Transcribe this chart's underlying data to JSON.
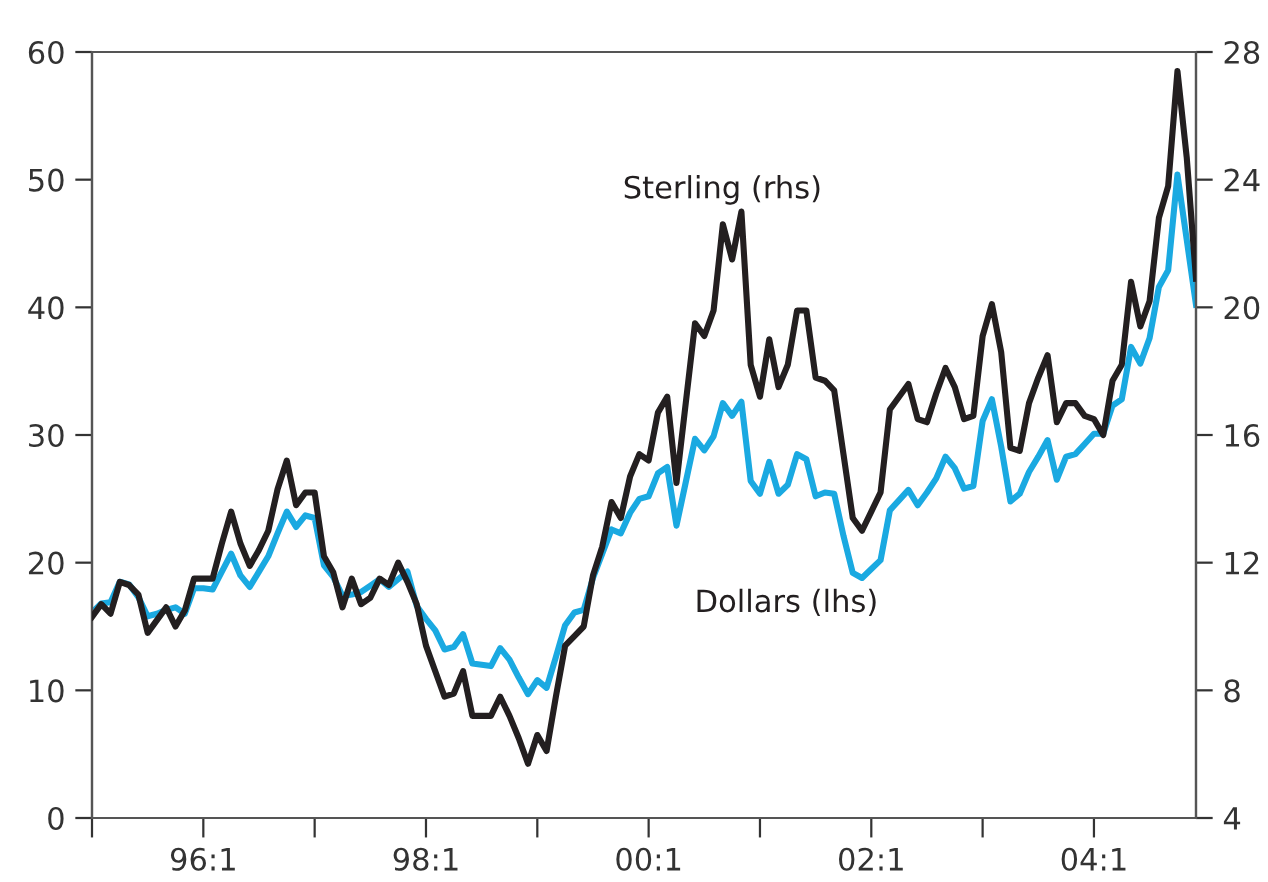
{
  "chart_data": {
    "type": "line",
    "categories": [
      null,
      null,
      null,
      null,
      null,
      null,
      null,
      null,
      null,
      null,
      null,
      null,
      "96:1",
      null,
      null,
      null,
      null,
      null,
      null,
      null,
      null,
      null,
      null,
      null,
      null,
      null,
      null,
      null,
      null,
      null,
      null,
      null,
      null,
      null,
      null,
      null,
      "98:1",
      null,
      null,
      null,
      null,
      null,
      null,
      null,
      null,
      null,
      null,
      null,
      null,
      null,
      null,
      null,
      null,
      null,
      null,
      null,
      null,
      null,
      null,
      null,
      "00:1",
      null,
      null,
      null,
      null,
      null,
      null,
      null,
      null,
      null,
      null,
      null,
      null,
      null,
      null,
      null,
      null,
      null,
      null,
      null,
      null,
      null,
      null,
      null,
      "02:1",
      null,
      null,
      null,
      null,
      null,
      null,
      null,
      null,
      null,
      null,
      null,
      null,
      null,
      null,
      null,
      null,
      null,
      null,
      null,
      null,
      null,
      null,
      null,
      "04:1",
      null,
      null,
      null,
      null,
      null,
      null,
      null,
      null,
      null,
      null,
      null
    ],
    "ylim": [
      0,
      60
    ],
    "yticks": [
      0,
      10,
      20,
      30,
      40,
      50,
      60
    ],
    "y2lim": [
      4,
      28
    ],
    "y2ticks": [
      4,
      8,
      12,
      16,
      20,
      24,
      28
    ],
    "grid": false,
    "legend": false,
    "marker": "none",
    "line_style": "solid",
    "series": [
      {
        "name": "Sterling (rhs)",
        "color": "#231f20",
        "axis": "y2",
        "values": [
          10.3,
          10.7,
          10.4,
          11.4,
          11.3,
          11.0,
          9.8,
          10.2,
          10.6,
          10.0,
          10.5,
          11.5,
          11.5,
          11.5,
          12.6,
          13.6,
          12.6,
          11.9,
          12.4,
          13.0,
          14.3,
          15.2,
          13.8,
          14.2,
          14.2,
          12.2,
          11.7,
          10.6,
          11.5,
          10.7,
          10.9,
          11.5,
          11.3,
          12.0,
          11.4,
          10.7,
          9.4,
          8.6,
          7.8,
          7.9,
          8.6,
          7.2,
          7.2,
          7.2,
          7.8,
          7.2,
          6.5,
          5.7,
          6.6,
          6.1,
          7.8,
          9.4,
          9.7,
          10.0,
          11.6,
          12.5,
          13.9,
          13.4,
          14.7,
          15.4,
          15.2,
          16.7,
          17.2,
          14.5,
          17.0,
          19.5,
          19.1,
          19.9,
          22.6,
          21.5,
          23.0,
          18.2,
          17.2,
          19.0,
          17.5,
          18.2,
          19.9,
          19.9,
          17.8,
          17.7,
          17.4,
          15.4,
          13.4,
          13.0,
          13.6,
          14.2,
          16.8,
          17.2,
          17.6,
          16.5,
          16.4,
          17.3,
          18.1,
          17.5,
          16.5,
          16.6,
          19.1,
          20.1,
          18.6,
          15.6,
          15.5,
          17.0,
          17.8,
          18.5,
          16.4,
          17.0,
          17.0,
          16.6,
          16.5,
          16.0,
          17.7,
          18.2,
          20.8,
          19.4,
          20.2,
          22.8,
          23.8,
          27.4,
          24.7,
          20.9
        ]
      },
      {
        "name": "Dollars (lhs)",
        "color": "#1aa9e1",
        "values": [
          16.1,
          16.8,
          16.9,
          18.5,
          18.3,
          17.3,
          15.8,
          16.0,
          16.3,
          16.5,
          16.0,
          18.0,
          18.0,
          17.9,
          19.3,
          20.7,
          19.0,
          18.1,
          19.3,
          20.5,
          22.3,
          24.0,
          22.8,
          23.7,
          23.5,
          19.8,
          18.9,
          17.4,
          17.5,
          17.7,
          18.2,
          18.7,
          18.1,
          18.7,
          19.3,
          16.6,
          15.6,
          14.7,
          13.2,
          13.4,
          14.4,
          12.1,
          12.0,
          11.9,
          13.3,
          12.4,
          11.0,
          9.7,
          10.8,
          10.2,
          12.6,
          15.1,
          16.1,
          16.3,
          18.8,
          20.7,
          22.6,
          22.3,
          23.9,
          25.0,
          25.2,
          27.0,
          27.5,
          22.9,
          26.3,
          29.7,
          28.8,
          29.9,
          32.5,
          31.5,
          32.6,
          26.4,
          25.4,
          27.9,
          25.4,
          26.1,
          28.5,
          28.1,
          25.2,
          25.5,
          25.4,
          22.1,
          19.2,
          18.8,
          19.5,
          20.2,
          24.1,
          24.9,
          25.7,
          24.5,
          25.5,
          26.6,
          28.3,
          27.4,
          25.8,
          26.0,
          31.1,
          32.8,
          29.1,
          24.8,
          25.4,
          27.1,
          28.3,
          29.6,
          26.5,
          28.3,
          28.5,
          29.3,
          30.1,
          30.1,
          32.3,
          32.8,
          36.9,
          35.6,
          37.6,
          41.6,
          42.9,
          50.4,
          45.3,
          40.2
        ]
      }
    ]
  }
}
